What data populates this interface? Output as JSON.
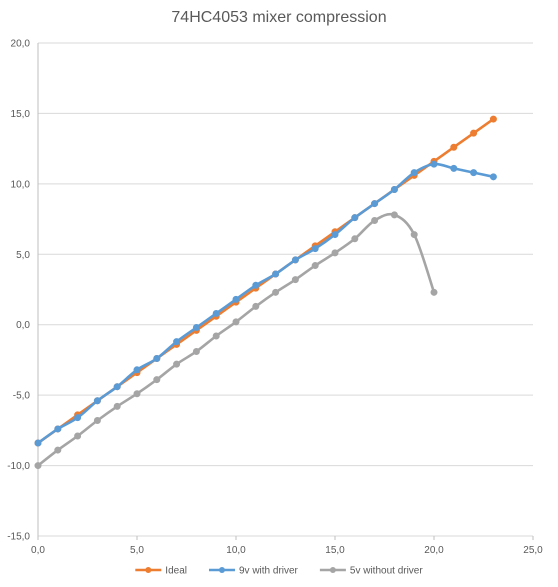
{
  "chart_data": {
    "type": "scatter",
    "title": "74HC4053 mixer compression",
    "xlabel": "",
    "ylabel": "",
    "xlim": [
      0,
      25
    ],
    "ylim": [
      -15,
      20
    ],
    "x_ticks": [
      "0,0",
      "5,0",
      "10,0",
      "15,0",
      "20,0",
      "25,0"
    ],
    "y_ticks": [
      "-15,0",
      "-10,0",
      "-5,0",
      "0,0",
      "5,0",
      "10,0",
      "15,0",
      "20,0"
    ],
    "x_tick_values": [
      0,
      5,
      10,
      15,
      20,
      25
    ],
    "y_tick_values": [
      -15,
      -10,
      -5,
      0,
      5,
      10,
      15,
      20
    ],
    "grid": "horizontal",
    "legend_position": "bottom",
    "series": [
      {
        "name": "Ideal",
        "color": "#ED7D31",
        "points": [
          [
            0,
            -8.4
          ],
          [
            1,
            -7.4
          ],
          [
            2,
            -6.4
          ],
          [
            3,
            -5.4
          ],
          [
            4,
            -4.4
          ],
          [
            5,
            -3.4
          ],
          [
            6,
            -2.4
          ],
          [
            7,
            -1.4
          ],
          [
            8,
            -0.4
          ],
          [
            9,
            0.6
          ],
          [
            10,
            1.6
          ],
          [
            11,
            2.6
          ],
          [
            12,
            3.6
          ],
          [
            13,
            4.6
          ],
          [
            14,
            5.6
          ],
          [
            15,
            6.6
          ],
          [
            16,
            7.6
          ],
          [
            17,
            8.6
          ],
          [
            18,
            9.6
          ],
          [
            19,
            10.6
          ],
          [
            20,
            11.6
          ],
          [
            21,
            12.6
          ],
          [
            22,
            13.6
          ],
          [
            23,
            14.6
          ]
        ]
      },
      {
        "name": "9v with driver",
        "color": "#5B9BD5",
        "points": [
          [
            0,
            -8.4
          ],
          [
            1,
            -7.4
          ],
          [
            2,
            -6.6
          ],
          [
            3,
            -5.4
          ],
          [
            4,
            -4.4
          ],
          [
            5,
            -3.2
          ],
          [
            6,
            -2.4
          ],
          [
            7,
            -1.2
          ],
          [
            8,
            -0.2
          ],
          [
            9,
            0.8
          ],
          [
            10,
            1.8
          ],
          [
            11,
            2.8
          ],
          [
            12,
            3.6
          ],
          [
            13,
            4.6
          ],
          [
            14,
            5.4
          ],
          [
            15,
            6.4
          ],
          [
            16,
            7.6
          ],
          [
            17,
            8.6
          ],
          [
            18,
            9.6
          ],
          [
            19,
            10.8
          ],
          [
            20,
            11.4
          ],
          [
            21,
            11.1
          ],
          [
            22,
            10.8
          ],
          [
            23,
            10.5
          ]
        ]
      },
      {
        "name": "5v without driver",
        "color": "#A5A5A5",
        "points": [
          [
            0,
            -10.0
          ],
          [
            1,
            -8.9
          ],
          [
            2,
            -7.9
          ],
          [
            3,
            -6.8
          ],
          [
            4,
            -5.8
          ],
          [
            5,
            -4.9
          ],
          [
            6,
            -3.9
          ],
          [
            7,
            -2.8
          ],
          [
            8,
            -1.9
          ],
          [
            9,
            -0.8
          ],
          [
            10,
            0.2
          ],
          [
            11,
            1.3
          ],
          [
            12,
            2.3
          ],
          [
            13,
            3.2
          ],
          [
            14,
            4.2
          ],
          [
            15,
            5.1
          ],
          [
            16,
            6.1
          ],
          [
            17,
            7.4
          ],
          [
            18,
            7.8
          ],
          [
            19,
            6.4
          ],
          [
            20,
            2.3
          ]
        ]
      }
    ]
  }
}
